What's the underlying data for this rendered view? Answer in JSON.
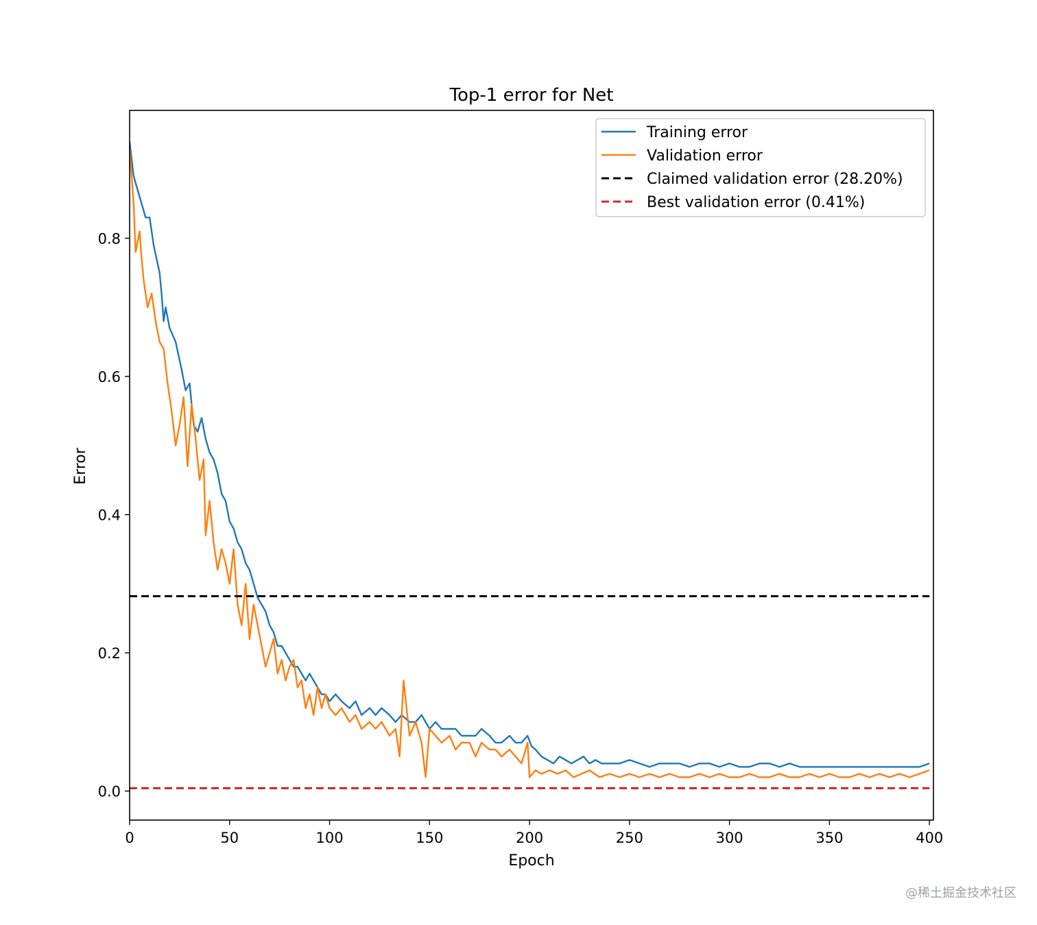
{
  "chart_data": {
    "type": "line",
    "title": "Top-1 error for Net",
    "xlabel": "Epoch",
    "ylabel": "Error",
    "xlim": [
      0,
      402
    ],
    "ylim": [
      -0.042,
      0.985
    ],
    "xticks": [
      0,
      50,
      100,
      150,
      200,
      250,
      300,
      350,
      400
    ],
    "yticks": [
      0.0,
      0.2,
      0.4,
      0.6,
      0.8
    ],
    "xtick_labels": [
      "0",
      "50",
      "100",
      "150",
      "200",
      "250",
      "300",
      "350",
      "400"
    ],
    "ytick_labels": [
      "0.0",
      "0.2",
      "0.4",
      "0.6",
      "0.8"
    ],
    "grid": false,
    "legend_position": "top-right",
    "series": [
      {
        "name": "Training error",
        "color": "#1f77b4",
        "style": "solid",
        "points": [
          [
            0,
            0.94
          ],
          [
            2,
            0.89
          ],
          [
            5,
            0.86
          ],
          [
            8,
            0.83
          ],
          [
            10,
            0.83
          ],
          [
            12,
            0.79
          ],
          [
            15,
            0.75
          ],
          [
            16,
            0.72
          ],
          [
            17,
            0.68
          ],
          [
            18,
            0.7
          ],
          [
            20,
            0.67
          ],
          [
            23,
            0.65
          ],
          [
            26,
            0.61
          ],
          [
            28,
            0.58
          ],
          [
            30,
            0.59
          ],
          [
            32,
            0.53
          ],
          [
            34,
            0.52
          ],
          [
            36,
            0.54
          ],
          [
            38,
            0.51
          ],
          [
            40,
            0.49
          ],
          [
            42,
            0.48
          ],
          [
            44,
            0.46
          ],
          [
            46,
            0.43
          ],
          [
            48,
            0.42
          ],
          [
            50,
            0.39
          ],
          [
            52,
            0.38
          ],
          [
            54,
            0.36
          ],
          [
            56,
            0.35
          ],
          [
            58,
            0.33
          ],
          [
            60,
            0.32
          ],
          [
            62,
            0.3
          ],
          [
            64,
            0.28
          ],
          [
            66,
            0.27
          ],
          [
            68,
            0.26
          ],
          [
            70,
            0.24
          ],
          [
            72,
            0.23
          ],
          [
            74,
            0.21
          ],
          [
            76,
            0.21
          ],
          [
            78,
            0.2
          ],
          [
            80,
            0.19
          ],
          [
            82,
            0.18
          ],
          [
            84,
            0.18
          ],
          [
            86,
            0.17
          ],
          [
            88,
            0.16
          ],
          [
            90,
            0.17
          ],
          [
            92,
            0.16
          ],
          [
            94,
            0.15
          ],
          [
            96,
            0.14
          ],
          [
            98,
            0.14
          ],
          [
            100,
            0.13
          ],
          [
            103,
            0.14
          ],
          [
            106,
            0.13
          ],
          [
            110,
            0.12
          ],
          [
            113,
            0.13
          ],
          [
            116,
            0.11
          ],
          [
            120,
            0.12
          ],
          [
            123,
            0.11
          ],
          [
            126,
            0.12
          ],
          [
            130,
            0.11
          ],
          [
            133,
            0.1
          ],
          [
            136,
            0.11
          ],
          [
            140,
            0.1
          ],
          [
            143,
            0.1
          ],
          [
            146,
            0.11
          ],
          [
            150,
            0.09
          ],
          [
            153,
            0.1
          ],
          [
            156,
            0.09
          ],
          [
            160,
            0.09
          ],
          [
            163,
            0.09
          ],
          [
            166,
            0.08
          ],
          [
            170,
            0.08
          ],
          [
            173,
            0.08
          ],
          [
            176,
            0.09
          ],
          [
            180,
            0.08
          ],
          [
            183,
            0.07
          ],
          [
            186,
            0.07
          ],
          [
            190,
            0.08
          ],
          [
            193,
            0.07
          ],
          [
            196,
            0.07
          ],
          [
            199,
            0.08
          ],
          [
            201,
            0.065
          ],
          [
            203,
            0.06
          ],
          [
            206,
            0.05
          ],
          [
            209,
            0.045
          ],
          [
            212,
            0.04
          ],
          [
            215,
            0.05
          ],
          [
            218,
            0.045
          ],
          [
            221,
            0.04
          ],
          [
            224,
            0.045
          ],
          [
            227,
            0.05
          ],
          [
            230,
            0.04
          ],
          [
            233,
            0.045
          ],
          [
            236,
            0.04
          ],
          [
            240,
            0.04
          ],
          [
            245,
            0.04
          ],
          [
            250,
            0.045
          ],
          [
            255,
            0.04
          ],
          [
            260,
            0.035
          ],
          [
            265,
            0.04
          ],
          [
            270,
            0.04
          ],
          [
            275,
            0.04
          ],
          [
            280,
            0.035
          ],
          [
            285,
            0.04
          ],
          [
            290,
            0.04
          ],
          [
            295,
            0.035
          ],
          [
            300,
            0.04
          ],
          [
            305,
            0.035
          ],
          [
            310,
            0.035
          ],
          [
            315,
            0.04
          ],
          [
            320,
            0.04
          ],
          [
            325,
            0.035
          ],
          [
            330,
            0.04
          ],
          [
            335,
            0.035
          ],
          [
            340,
            0.035
          ],
          [
            345,
            0.035
          ],
          [
            350,
            0.035
          ],
          [
            355,
            0.035
          ],
          [
            360,
            0.035
          ],
          [
            365,
            0.035
          ],
          [
            370,
            0.035
          ],
          [
            375,
            0.035
          ],
          [
            380,
            0.035
          ],
          [
            385,
            0.035
          ],
          [
            390,
            0.035
          ],
          [
            395,
            0.035
          ],
          [
            400,
            0.04
          ]
        ]
      },
      {
        "name": "Validation error",
        "color": "#ff7f0e",
        "style": "solid",
        "points": [
          [
            0,
            0.93
          ],
          [
            2,
            0.85
          ],
          [
            3,
            0.78
          ],
          [
            5,
            0.81
          ],
          [
            6,
            0.77
          ],
          [
            7,
            0.74
          ],
          [
            8,
            0.72
          ],
          [
            9,
            0.7
          ],
          [
            11,
            0.72
          ],
          [
            13,
            0.68
          ],
          [
            15,
            0.65
          ],
          [
            17,
            0.64
          ],
          [
            19,
            0.59
          ],
          [
            21,
            0.55
          ],
          [
            23,
            0.5
          ],
          [
            25,
            0.53
          ],
          [
            27,
            0.57
          ],
          [
            29,
            0.47
          ],
          [
            31,
            0.56
          ],
          [
            33,
            0.51
          ],
          [
            35,
            0.45
          ],
          [
            37,
            0.48
          ],
          [
            38,
            0.37
          ],
          [
            40,
            0.42
          ],
          [
            42,
            0.36
          ],
          [
            44,
            0.32
          ],
          [
            46,
            0.35
          ],
          [
            48,
            0.33
          ],
          [
            50,
            0.3
          ],
          [
            52,
            0.35
          ],
          [
            54,
            0.27
          ],
          [
            56,
            0.24
          ],
          [
            58,
            0.3
          ],
          [
            60,
            0.22
          ],
          [
            62,
            0.27
          ],
          [
            64,
            0.24
          ],
          [
            66,
            0.21
          ],
          [
            68,
            0.18
          ],
          [
            70,
            0.2
          ],
          [
            72,
            0.22
          ],
          [
            74,
            0.17
          ],
          [
            76,
            0.19
          ],
          [
            78,
            0.16
          ],
          [
            80,
            0.18
          ],
          [
            82,
            0.19
          ],
          [
            84,
            0.15
          ],
          [
            86,
            0.16
          ],
          [
            88,
            0.12
          ],
          [
            90,
            0.14
          ],
          [
            92,
            0.11
          ],
          [
            94,
            0.15
          ],
          [
            96,
            0.12
          ],
          [
            98,
            0.14
          ],
          [
            100,
            0.12
          ],
          [
            103,
            0.11
          ],
          [
            106,
            0.12
          ],
          [
            110,
            0.1
          ],
          [
            113,
            0.11
          ],
          [
            116,
            0.09
          ],
          [
            120,
            0.1
          ],
          [
            123,
            0.09
          ],
          [
            126,
            0.1
          ],
          [
            130,
            0.08
          ],
          [
            133,
            0.09
          ],
          [
            135,
            0.05
          ],
          [
            137,
            0.16
          ],
          [
            140,
            0.08
          ],
          [
            143,
            0.1
          ],
          [
            146,
            0.07
          ],
          [
            148,
            0.02
          ],
          [
            150,
            0.09
          ],
          [
            153,
            0.08
          ],
          [
            156,
            0.07
          ],
          [
            160,
            0.08
          ],
          [
            163,
            0.06
          ],
          [
            166,
            0.07
          ],
          [
            170,
            0.07
          ],
          [
            173,
            0.05
          ],
          [
            176,
            0.07
          ],
          [
            180,
            0.06
          ],
          [
            183,
            0.06
          ],
          [
            186,
            0.05
          ],
          [
            190,
            0.06
          ],
          [
            193,
            0.05
          ],
          [
            196,
            0.04
          ],
          [
            199,
            0.07
          ],
          [
            200,
            0.02
          ],
          [
            203,
            0.03
          ],
          [
            206,
            0.025
          ],
          [
            210,
            0.03
          ],
          [
            214,
            0.025
          ],
          [
            218,
            0.03
          ],
          [
            222,
            0.02
          ],
          [
            226,
            0.025
          ],
          [
            230,
            0.03
          ],
          [
            235,
            0.02
          ],
          [
            240,
            0.025
          ],
          [
            245,
            0.02
          ],
          [
            250,
            0.025
          ],
          [
            255,
            0.02
          ],
          [
            260,
            0.025
          ],
          [
            265,
            0.02
          ],
          [
            270,
            0.025
          ],
          [
            275,
            0.02
          ],
          [
            280,
            0.02
          ],
          [
            285,
            0.025
          ],
          [
            290,
            0.02
          ],
          [
            295,
            0.025
          ],
          [
            300,
            0.02
          ],
          [
            305,
            0.02
          ],
          [
            310,
            0.025
          ],
          [
            315,
            0.02
          ],
          [
            320,
            0.02
          ],
          [
            325,
            0.025
          ],
          [
            330,
            0.02
          ],
          [
            335,
            0.02
          ],
          [
            340,
            0.025
          ],
          [
            345,
            0.02
          ],
          [
            350,
            0.025
          ],
          [
            355,
            0.02
          ],
          [
            360,
            0.02
          ],
          [
            365,
            0.025
          ],
          [
            370,
            0.02
          ],
          [
            375,
            0.025
          ],
          [
            380,
            0.02
          ],
          [
            385,
            0.025
          ],
          [
            390,
            0.02
          ],
          [
            395,
            0.025
          ],
          [
            400,
            0.03
          ]
        ]
      },
      {
        "name": "Claimed validation error (28.20%)",
        "color": "#000000",
        "style": "dashed",
        "points": [
          [
            0,
            0.282
          ],
          [
            400,
            0.282
          ]
        ]
      },
      {
        "name": "Best validation error (0.41%)",
        "color": "#d62728",
        "style": "dashed",
        "points": [
          [
            0,
            0.0041
          ],
          [
            400,
            0.0041
          ]
        ]
      }
    ]
  },
  "watermark": "@稀土掘金技术社区"
}
